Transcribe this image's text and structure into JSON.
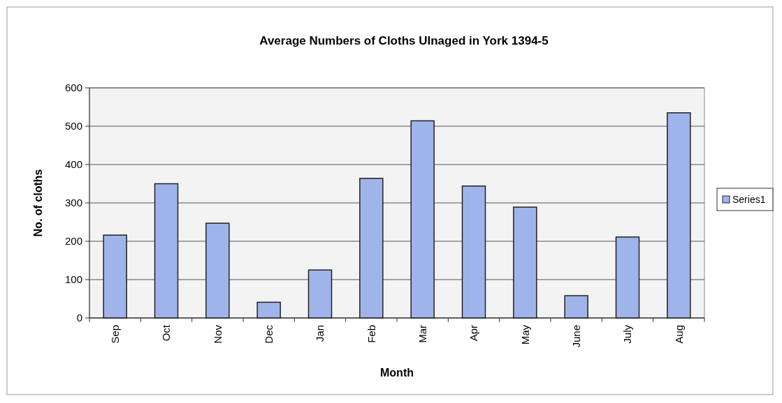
{
  "chart_data": {
    "type": "bar",
    "title": "Average Numbers of Cloths Ulnaged in York 1394-5",
    "xlabel": "Month",
    "ylabel": "No. of cloths",
    "categories": [
      "Sep",
      "Oct",
      "Nov",
      "Dec",
      "Jan",
      "Feb",
      "Mar",
      "Apr",
      "May",
      "June",
      "July",
      "Aug"
    ],
    "series": [
      {
        "name": "Series1",
        "color": "#9fb4ea",
        "values": [
          216,
          350,
          247,
          41,
          125,
          364,
          514,
          344,
          289,
          58,
          211,
          535
        ]
      }
    ],
    "ylim": [
      0,
      600
    ],
    "yticks": [
      0,
      100,
      200,
      300,
      400,
      500,
      600
    ],
    "grid": "y",
    "legend": "right"
  }
}
